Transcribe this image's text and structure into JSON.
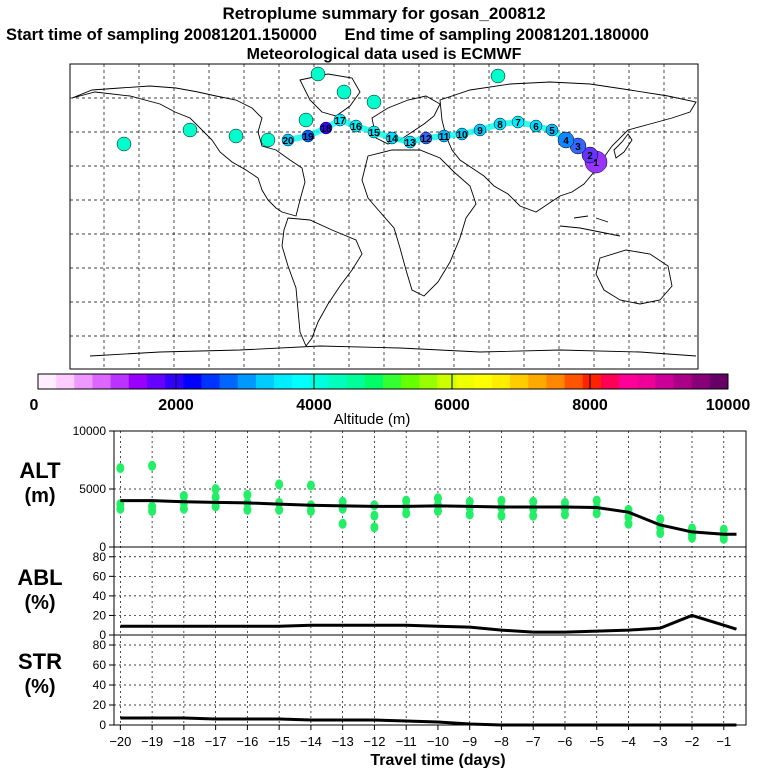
{
  "header": {
    "title": "Retroplume summary for gosan_200812",
    "start_label": "Start time of sampling 20081201.150000",
    "end_label": "End time of sampling 20081201.180000",
    "met_label": "Meteorological data used is ECMWF"
  },
  "colorbar": {
    "ticks": [
      "0",
      "2000",
      "4000",
      "6000",
      "8000",
      "10000"
    ],
    "label": "Altitude (m)",
    "colors": [
      "#ffeeff",
      "#ffccff",
      "#ee99ff",
      "#dd66ff",
      "#bb33ff",
      "#9900ff",
      "#6600ff",
      "#3300ff",
      "#0000ff",
      "#0033ff",
      "#0066ff",
      "#0099ff",
      "#00ccff",
      "#00eeff",
      "#00ffff",
      "#00ffdd",
      "#00ffbb",
      "#00ff99",
      "#00ff66",
      "#33ff33",
      "#66ff00",
      "#99ff00",
      "#ccff00",
      "#eeff00",
      "#ffff00",
      "#ffee00",
      "#ffcc00",
      "#ffaa00",
      "#ff8800",
      "#ff5500",
      "#ff2200",
      "#ff0055",
      "#ff0099",
      "#ee0099",
      "#cc0099",
      "#aa0088",
      "#880077",
      "#660066"
    ]
  },
  "map": {
    "plume_labels": [
      "20",
      "19",
      "18",
      "17",
      "16",
      "15",
      "14",
      "13",
      "12",
      "11",
      "10",
      "9",
      "8",
      "7",
      "6",
      "5",
      "4",
      "3",
      "2",
      "1"
    ]
  },
  "chart_data": [
    {
      "type": "scatter+line",
      "panel": "ALT",
      "ylabel": "ALT (m)",
      "ylim": [
        0,
        10000
      ],
      "yticks": [
        0,
        5000,
        10000
      ],
      "xlim": [
        -20.2,
        -0.3
      ],
      "median_line": [
        [
          -20,
          4000
        ],
        [
          -19,
          4000
        ],
        [
          -18,
          3900
        ],
        [
          -17,
          3850
        ],
        [
          -16,
          3800
        ],
        [
          -15,
          3700
        ],
        [
          -14,
          3600
        ],
        [
          -13,
          3550
        ],
        [
          -12,
          3500
        ],
        [
          -11,
          3500
        ],
        [
          -10,
          3550
        ],
        [
          -9,
          3500
        ],
        [
          -8,
          3450
        ],
        [
          -7,
          3450
        ],
        [
          -6,
          3450
        ],
        [
          -5,
          3400
        ],
        [
          -4,
          3000
        ],
        [
          -3,
          1900
        ],
        [
          -2,
          1300
        ],
        [
          -1,
          1100
        ],
        [
          -0.6,
          1100
        ]
      ],
      "scatter_points": [
        [
          -20,
          6800
        ],
        [
          -20,
          3700
        ],
        [
          -20,
          3300
        ],
        [
          -19,
          7000
        ],
        [
          -19,
          3500
        ],
        [
          -19,
          3100
        ],
        [
          -18,
          4400
        ],
        [
          -18,
          3800
        ],
        [
          -18,
          3300
        ],
        [
          -17,
          5000
        ],
        [
          -17,
          4300
        ],
        [
          -17,
          3500
        ],
        [
          -16,
          4500
        ],
        [
          -16,
          3800
        ],
        [
          -16,
          3200
        ],
        [
          -15,
          5400
        ],
        [
          -15,
          3800
        ],
        [
          -15,
          3200
        ],
        [
          -14,
          5300
        ],
        [
          -14,
          3600
        ],
        [
          -14,
          3100
        ],
        [
          -13,
          3900
        ],
        [
          -13,
          3300
        ],
        [
          -13,
          2000
        ],
        [
          -12,
          3600
        ],
        [
          -12,
          2700
        ],
        [
          -12,
          1700
        ],
        [
          -11,
          4000
        ],
        [
          -11,
          3500
        ],
        [
          -11,
          2900
        ],
        [
          -10,
          4200
        ],
        [
          -10,
          3600
        ],
        [
          -10,
          3100
        ],
        [
          -9,
          3900
        ],
        [
          -9,
          3400
        ],
        [
          -9,
          2800
        ],
        [
          -8,
          4000
        ],
        [
          -8,
          3400
        ],
        [
          -8,
          2700
        ],
        [
          -7,
          3900
        ],
        [
          -7,
          3300
        ],
        [
          -7,
          2700
        ],
        [
          -6,
          3800
        ],
        [
          -6,
          3300
        ],
        [
          -6,
          2800
        ],
        [
          -5,
          4000
        ],
        [
          -5,
          3400
        ],
        [
          -5,
          2900
        ],
        [
          -4,
          3200
        ],
        [
          -4,
          2600
        ],
        [
          -4,
          2000
        ],
        [
          -3,
          2400
        ],
        [
          -3,
          1700
        ],
        [
          -3,
          1200
        ],
        [
          -2,
          1600
        ],
        [
          -2,
          1100
        ],
        [
          -2,
          800
        ],
        [
          -1,
          1500
        ],
        [
          -1,
          1000
        ],
        [
          -1,
          700
        ]
      ]
    },
    {
      "type": "line",
      "panel": "ABL",
      "ylabel": "ABL (%)",
      "ylim": [
        0,
        90
      ],
      "yticks": [
        0,
        20,
        40,
        60,
        80
      ],
      "xlim": [
        -20.2,
        -0.3
      ],
      "line": [
        [
          -20,
          9
        ],
        [
          -19,
          9
        ],
        [
          -18,
          9
        ],
        [
          -17,
          9
        ],
        [
          -16,
          9
        ],
        [
          -15,
          9
        ],
        [
          -14,
          10
        ],
        [
          -13,
          10
        ],
        [
          -12,
          10
        ],
        [
          -11,
          10
        ],
        [
          -10,
          9
        ],
        [
          -9,
          8
        ],
        [
          -8,
          5
        ],
        [
          -7,
          3
        ],
        [
          -6,
          3
        ],
        [
          -5,
          4
        ],
        [
          -4,
          5
        ],
        [
          -3,
          7
        ],
        [
          -2,
          20
        ],
        [
          -1,
          10
        ],
        [
          -0.6,
          6
        ]
      ]
    },
    {
      "type": "line",
      "panel": "STR",
      "ylabel": "STR (%)",
      "ylim": [
        0,
        90
      ],
      "yticks": [
        0,
        20,
        40,
        60,
        80
      ],
      "xlim": [
        -20.2,
        -0.3
      ],
      "line": [
        [
          -20,
          7
        ],
        [
          -19,
          7
        ],
        [
          -18,
          7
        ],
        [
          -17,
          6
        ],
        [
          -16,
          6
        ],
        [
          -15,
          6
        ],
        [
          -14,
          5
        ],
        [
          -13,
          5
        ],
        [
          -12,
          5
        ],
        [
          -11,
          4
        ],
        [
          -10,
          3
        ],
        [
          -9,
          1
        ],
        [
          -8,
          0
        ],
        [
          -7,
          0
        ],
        [
          -6,
          0
        ],
        [
          -5,
          0
        ],
        [
          -4,
          0
        ],
        [
          -3,
          0
        ],
        [
          -2,
          0
        ],
        [
          -1,
          0
        ],
        [
          -0.6,
          0
        ]
      ]
    }
  ],
  "xaxis": {
    "ticks": [
      "-20",
      "-19",
      "-18",
      "-17",
      "-16",
      "-15",
      "-14",
      "-13",
      "-12",
      "-11",
      "-10",
      "-9",
      "-8",
      "-7",
      "-6",
      "-5",
      "-4",
      "-3",
      "-2",
      "-1"
    ],
    "label": "Travel time (days)"
  },
  "panel_labels": {
    "alt": [
      "ALT",
      "(m)"
    ],
    "abl": [
      "ABL",
      "(%)"
    ],
    "str": [
      "STR",
      "(%)"
    ]
  },
  "colors": {
    "scatter": "#22ee66",
    "line": "#000000",
    "grid": "#000000"
  }
}
